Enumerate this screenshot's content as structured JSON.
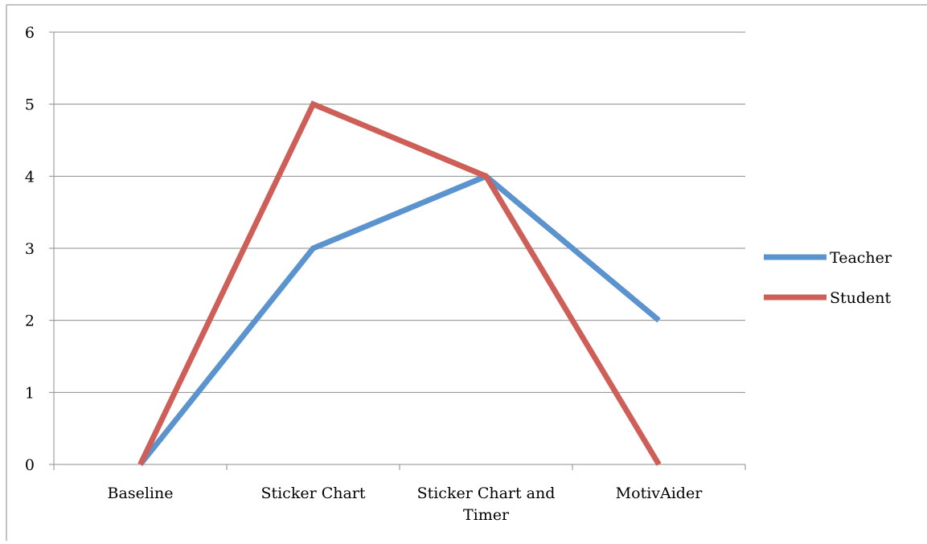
{
  "chart_data": {
    "type": "line",
    "title": "",
    "xlabel": "",
    "ylabel": "",
    "categories": [
      "Baseline",
      "Sticker Chart",
      "Sticker Chart and Timer",
      "MotivAider"
    ],
    "category_lines": [
      [
        "Baseline"
      ],
      [
        "Sticker Chart"
      ],
      [
        "Sticker Chart and",
        "Timer"
      ],
      [
        "MotivAider"
      ]
    ],
    "ylim": [
      0,
      6
    ],
    "yticks": [
      "0",
      "1",
      "2",
      "3",
      "4",
      "5",
      "6"
    ],
    "grid": true,
    "legend_position": "right",
    "series": [
      {
        "name": "Teacher",
        "color": "#5B93CF",
        "values": [
          0,
          3,
          4,
          2
        ]
      },
      {
        "name": "Student",
        "color": "#CE5F58",
        "values": [
          0,
          5,
          4,
          0
        ]
      }
    ]
  }
}
